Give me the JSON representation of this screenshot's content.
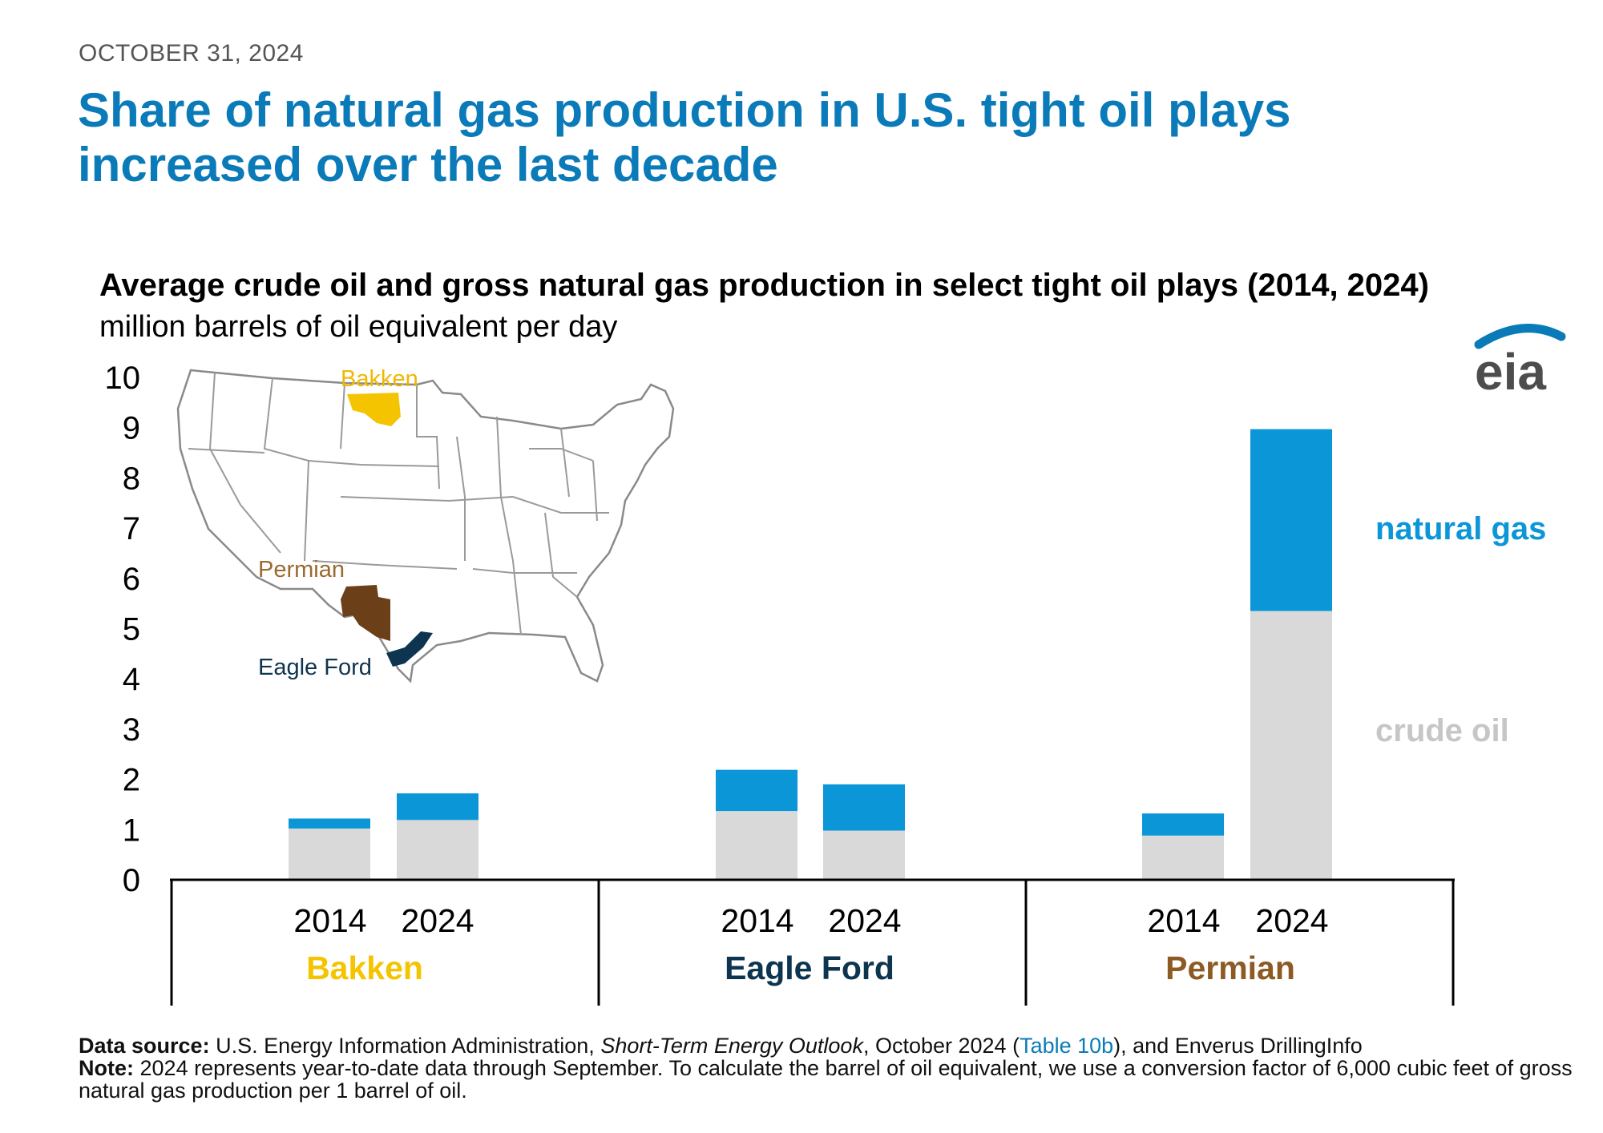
{
  "header": {
    "date": "OCTOBER 31, 2024",
    "headline": "Share of natural gas production in U.S. tight oil plays increased over the last decade"
  },
  "logo": {
    "text": "eia",
    "color": "#0a7bb8"
  },
  "colors": {
    "crude_oil": "#d9d9d9",
    "natural_gas": "#0b96d8",
    "bakken": "#f5c400",
    "eagle_ford": "#0d3550",
    "permian": "#8c5a22",
    "legend_gas": "#0b96d8",
    "legend_oil": "#c6c6c6"
  },
  "chart_data": {
    "type": "bar",
    "stacked": true,
    "title": "Average crude oil and gross natural gas production in select tight oil plays (2014, 2024)",
    "ylabel": "million barrels of oil equivalent per day",
    "ylim": [
      0,
      10
    ],
    "yticks": [
      "0",
      "1",
      "2",
      "3",
      "4",
      "5",
      "6",
      "7",
      "8",
      "9",
      "10"
    ],
    "groups": [
      "Bakken",
      "Eagle Ford",
      "Permian"
    ],
    "categories": [
      "2014",
      "2024",
      "2014",
      "2024",
      "2014",
      "2024"
    ],
    "series": [
      {
        "name": "crude oil",
        "values": [
          1.02,
          1.19,
          1.37,
          0.98,
          0.88,
          5.35
        ]
      },
      {
        "name": "natural gas",
        "values": [
          0.2,
          0.53,
          0.82,
          0.92,
          0.44,
          3.62
        ]
      }
    ],
    "legend": [
      "natural gas",
      "crude oil"
    ]
  },
  "map": {
    "labels": {
      "bakken": "Bakken",
      "permian": "Permian",
      "eagle_ford": "Eagle Ford"
    }
  },
  "footer": {
    "source_label": "Data source:",
    "source_pre": "U.S. Energy Information Administration,",
    "source_title": "Short-Term Energy Outlook",
    "source_mid": ", October 2024 (",
    "source_link": "Table 10b",
    "source_post": "), and Enverus DrillingInfo",
    "note_label": "Note:",
    "note_text": "2024 represents year-to-date data through September. To calculate the barrel of oil equivalent, we use a conversion factor of 6,000 cubic feet of gross natural gas production per 1 barrel of oil."
  }
}
